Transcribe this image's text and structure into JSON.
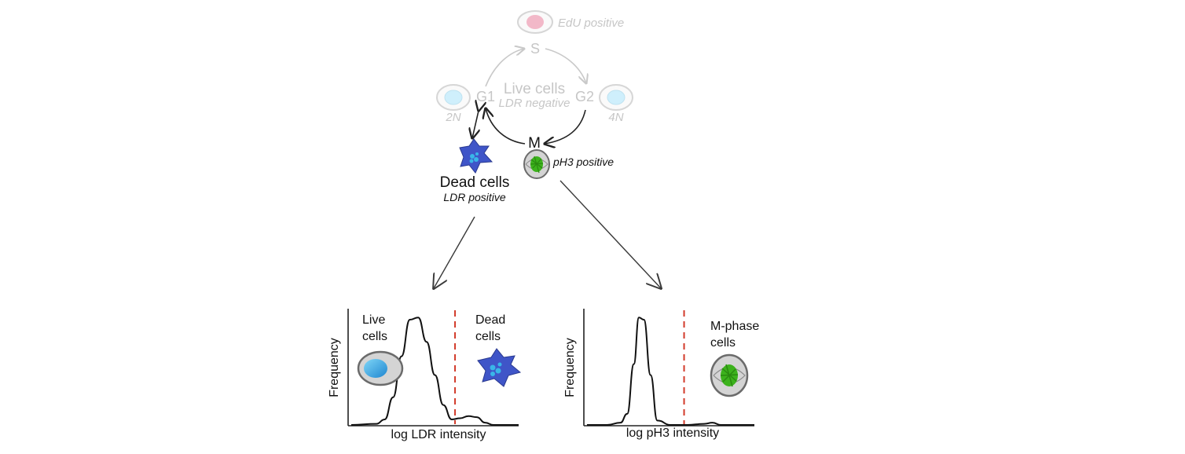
{
  "cycle": {
    "edu_label": "EdU positive",
    "s_label": "S",
    "g1_label": "G1",
    "g2_label": "G2",
    "m_label": "M",
    "live_title": "Live cells",
    "live_subtitle": "LDR negative",
    "ploidy_2n": "2N",
    "ploidy_4n": "4N",
    "ph3_label": "pH3 positive"
  },
  "dead": {
    "title": "Dead cells",
    "subtitle": "LDR positive"
  },
  "chart_data": [
    {
      "type": "line",
      "ylabel": "Frequency",
      "xlabel": "log LDR intensity",
      "annotations": [
        "Live cells",
        "Dead cells"
      ],
      "threshold_x": 0.62,
      "x": [
        0.0,
        0.15,
        0.2,
        0.25,
        0.3,
        0.35,
        0.4,
        0.45,
        0.5,
        0.55,
        0.6,
        0.65,
        0.7,
        0.75,
        0.8,
        0.85,
        1.0
      ],
      "y": [
        0.0,
        0.01,
        0.05,
        0.25,
        0.62,
        0.95,
        0.97,
        0.75,
        0.45,
        0.18,
        0.05,
        0.06,
        0.08,
        0.07,
        0.02,
        0.0,
        0.0
      ]
    },
    {
      "type": "line",
      "ylabel": "Frequency",
      "xlabel": "log pH3 intensity",
      "annotations": [
        "M-phase cells"
      ],
      "threshold_x": 0.58,
      "x": [
        0.0,
        0.12,
        0.2,
        0.24,
        0.28,
        0.31,
        0.34,
        0.38,
        0.42,
        0.5,
        0.6,
        0.7,
        0.75,
        0.8,
        1.0
      ],
      "y": [
        0.0,
        0.0,
        0.02,
        0.1,
        0.55,
        0.97,
        0.95,
        0.45,
        0.04,
        0.0,
        0.0,
        0.01,
        0.02,
        0.0,
        0.0
      ]
    }
  ],
  "colors": {
    "faded": "#c9c9c9",
    "threshold": "#d23a2a",
    "dead_cell": "#3f55c8",
    "mitotic_chromatin": "#3cb21c",
    "live_nucleus": "#2aa6e0",
    "edu_nucleus": "#f2b8c8"
  }
}
